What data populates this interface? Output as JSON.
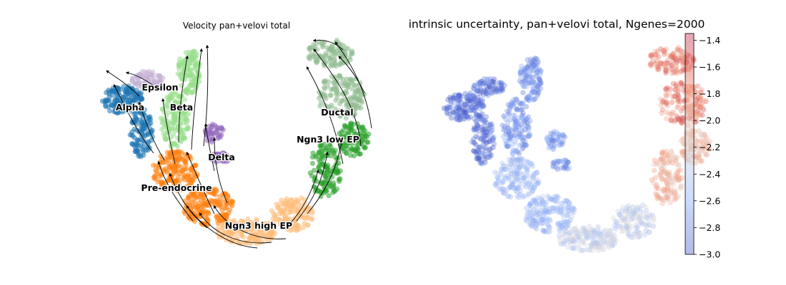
{
  "chart_data": [
    {
      "type": "scatter",
      "subtype": "umap-velocity-stream",
      "title": "Velocity pan+velovi total",
      "xlabel": "",
      "ylabel": "",
      "axes_visible": false,
      "grid": false,
      "legend": "on-data",
      "clusters": [
        {
          "name": "Alpha",
          "color": "#1f77b4"
        },
        {
          "name": "Epsilon",
          "color": "#c5b0d5"
        },
        {
          "name": "Beta",
          "color": "#98df8a"
        },
        {
          "name": "Delta",
          "color": "#9467bd"
        },
        {
          "name": "Pre-endocrine",
          "color": "#ff7f0e"
        },
        {
          "name": "Ngn3 high EP",
          "color": "#ffbb78"
        },
        {
          "name": "Ngn3 low EP",
          "color": "#2ca02c"
        },
        {
          "name": "Ductal",
          "color": "#8fbc8f"
        }
      ]
    },
    {
      "type": "scatter",
      "subtype": "umap-continuous-color",
      "title": "intrinsic uncertainty, pan+velovi total, Ngenes=2000",
      "xlabel": "",
      "ylabel": "",
      "axes_visible": false,
      "grid": false,
      "colorbar": {
        "cmap": "coolwarm",
        "vmin": -3.0,
        "vmax": -1.35,
        "ticks": [
          -3.0,
          -2.8,
          -2.6,
          -2.4,
          -2.2,
          -2.0,
          -1.8,
          -1.6,
          -1.4
        ],
        "tick_labels": [
          "−3.0",
          "−2.8",
          "−2.6",
          "−2.4",
          "−2.2",
          "−2.0",
          "−1.8",
          "−1.6",
          "−1.4"
        ],
        "position": "right"
      },
      "value_by_region": [
        {
          "region": "Alpha/Epsilon (upper left)",
          "value": -2.85
        },
        {
          "region": "Beta/Delta (center left)",
          "value": -2.7
        },
        {
          "region": "Pre-endocrine (lower left)",
          "value": -2.5
        },
        {
          "region": "Ngn3 high EP (bottom)",
          "value": -2.3
        },
        {
          "region": "Ngn3 low EP (right)",
          "value": -1.9
        },
        {
          "region": "Ductal (upper right)",
          "value": -1.7
        }
      ]
    }
  ]
}
